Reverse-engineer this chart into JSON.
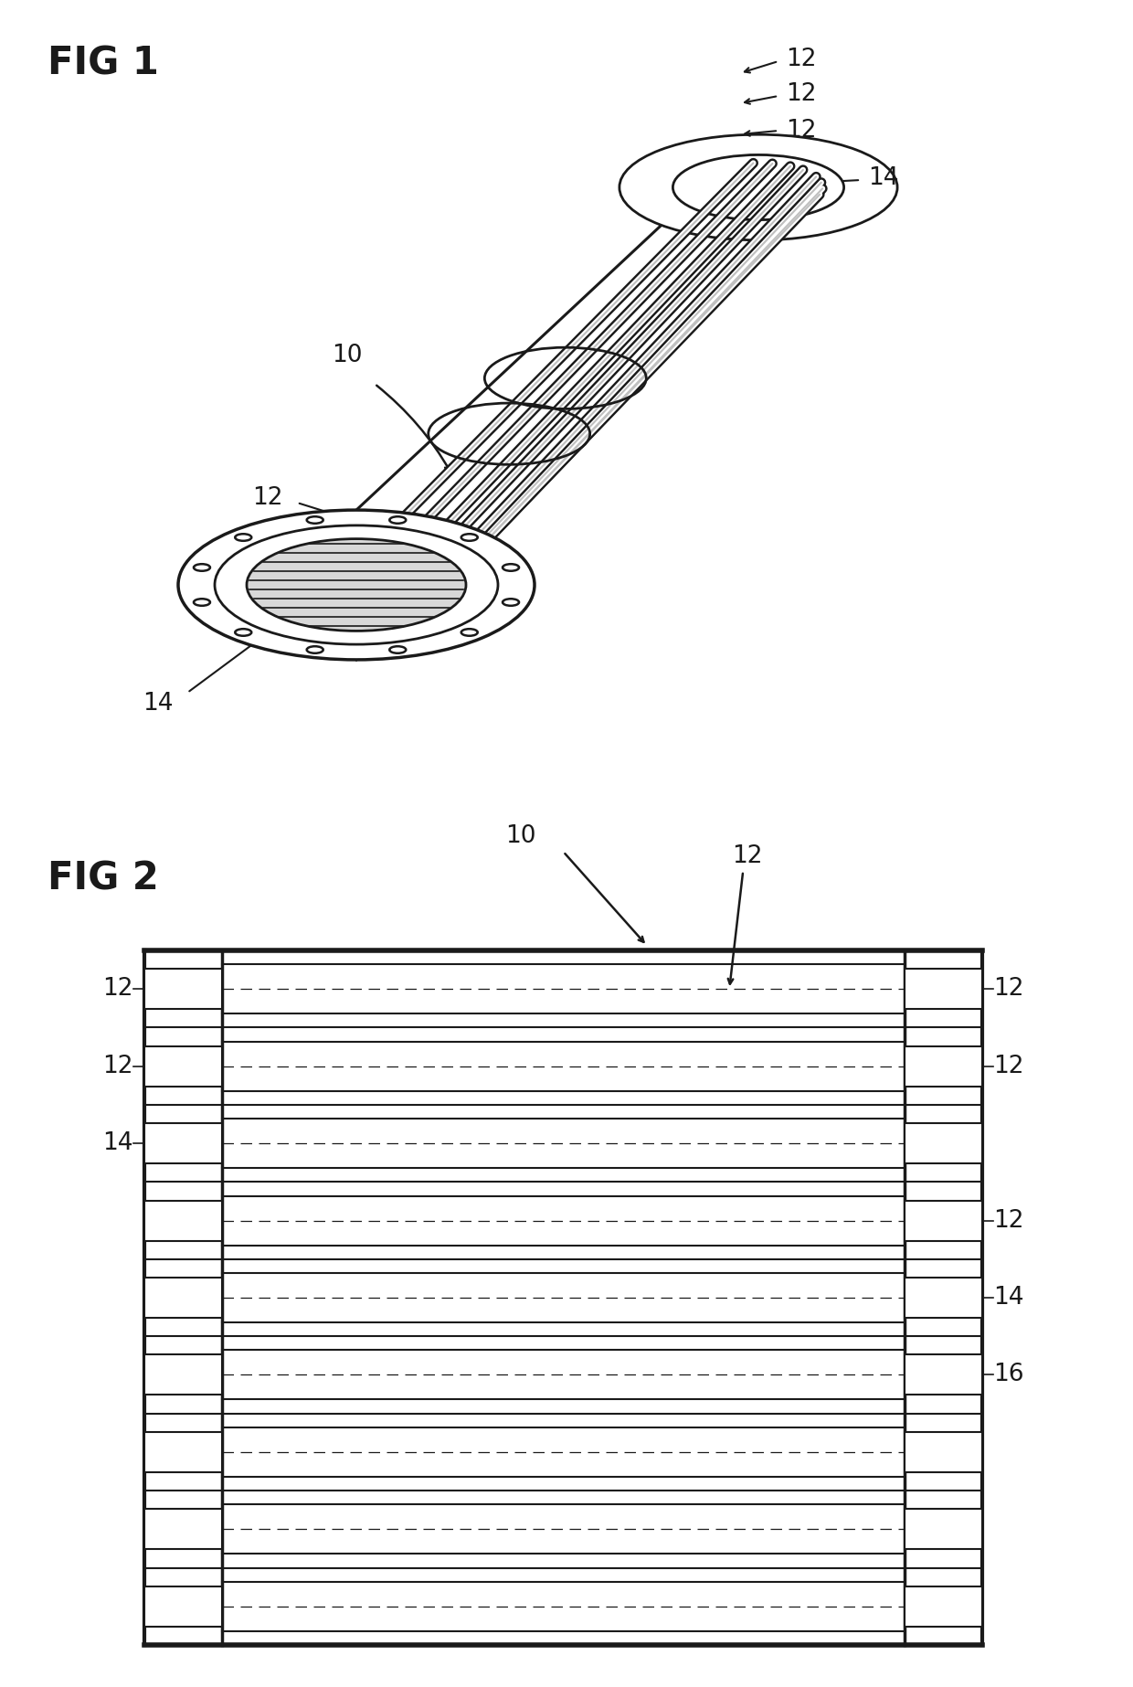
{
  "bg_color": "#ffffff",
  "line_color": "#1a1a1a",
  "fig1_label": "FIG 1",
  "fig2_label": "FIG 2",
  "label_10": "10",
  "label_12": "12",
  "label_14": "14",
  "label_16": "16",
  "n_bolts": 12,
  "n_bars": 8,
  "n_rows": 9
}
